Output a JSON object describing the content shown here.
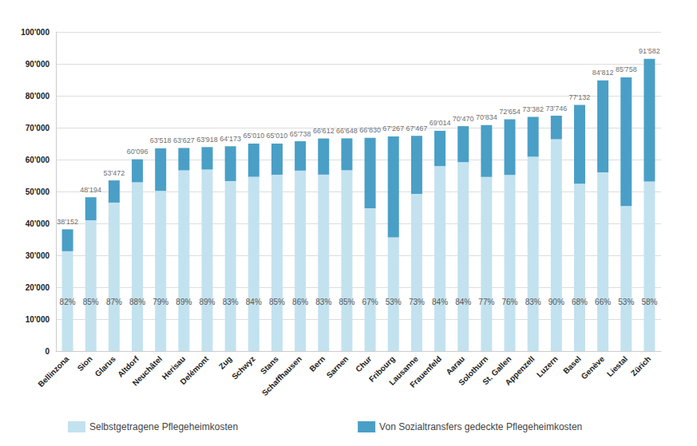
{
  "chart_data": {
    "type": "bar",
    "stacked": true,
    "grid": true,
    "legend": "bottom",
    "categories": [
      "Bellinzona",
      "Sion",
      "Glarus",
      "Altdorf",
      "Neuchâtel",
      "Herisau",
      "Delémont",
      "Zug",
      "Schwyz",
      "Stans",
      "Schaffhausen",
      "Bern",
      "Sarnen",
      "Chur",
      "Fribourg",
      "Lausanne",
      "Frauenfeld",
      "Aarau",
      "Solothurn",
      "St. Gallen",
      "Appenzell",
      "Luzern",
      "Basel",
      "Genève",
      "Liestal",
      "Zürich"
    ],
    "series": [
      {
        "name": "Selbstgetragene Pflegeheimkosten",
        "color": "#c3e2ef",
        "values": [
          31285,
          40965,
          46521,
          52884,
          50179,
          56628,
          56887,
          53264,
          54608,
          55259,
          56535,
          55288,
          56651,
          44776,
          35652,
          49251,
          57972,
          59195,
          54542,
          55217,
          60907,
          66371,
          52450,
          55976,
          45452,
          53118
        ]
      },
      {
        "name": "Von Sozialtransfers gedeckte Pflegeheimkosten",
        "color": "#4a9fc6",
        "values": [
          6867,
          7229,
          6951,
          7212,
          13339,
          6999,
          7031,
          10909,
          10402,
          9751,
          9203,
          11324,
          9997,
          22054,
          31615,
          18216,
          11042,
          11275,
          16292,
          17437,
          12475,
          7375,
          24682,
          28836,
          40306,
          38464
        ]
      }
    ],
    "totals": [
      38152,
      48194,
      53472,
      60096,
      63518,
      63627,
      63918,
      64173,
      65010,
      65010,
      65738,
      66612,
      66648,
      66830,
      67267,
      67467,
      69014,
      70470,
      70834,
      72654,
      73382,
      73746,
      77132,
      84812,
      85758,
      91582
    ],
    "total_labels": [
      "38'152",
      "48'194",
      "53'472",
      "60'096",
      "63'518",
      "63'627",
      "63'918",
      "64'173",
      "65'010",
      "65'010",
      "65'738",
      "66'612",
      "66'648",
      "66'830",
      "67'267",
      "67'467",
      "69'014",
      "70'470",
      "70'834",
      "72'654",
      "73'382",
      "73'746",
      "77'132",
      "84'812",
      "85'758",
      "91'582"
    ],
    "shares": [
      82,
      85,
      87,
      88,
      79,
      89,
      89,
      83,
      84,
      85,
      86,
      83,
      85,
      67,
      53,
      73,
      84,
      84,
      77,
      76,
      83,
      90,
      68,
      66,
      53,
      58
    ],
    "share_labels": [
      "82%",
      "85%",
      "87%",
      "88%",
      "79%",
      "89%",
      "89%",
      "83%",
      "84%",
      "85%",
      "86%",
      "83%",
      "85%",
      "67%",
      "53%",
      "73%",
      "84%",
      "84%",
      "77%",
      "76%",
      "83%",
      "90%",
      "68%",
      "66%",
      "53%",
      "58%"
    ],
    "ylim": [
      0,
      100000
    ],
    "yticks": [
      0,
      {
        "value": 10000,
        "label": "10'000"
      },
      {
        "value": 20000,
        "label": "20'000"
      },
      {
        "value": 30000,
        "label": "30'000"
      },
      {
        "value": 40000,
        "label": "40'000"
      },
      {
        "value": 50000,
        "label": "50'000"
      },
      {
        "value": 60000,
        "label": "60'000"
      },
      {
        "value": 70000,
        "label": "70'000"
      },
      {
        "value": 80000,
        "label": "80'000"
      },
      {
        "value": 90000,
        "label": "90'000"
      },
      {
        "value": 100000,
        "label": "100'000"
      }
    ]
  }
}
